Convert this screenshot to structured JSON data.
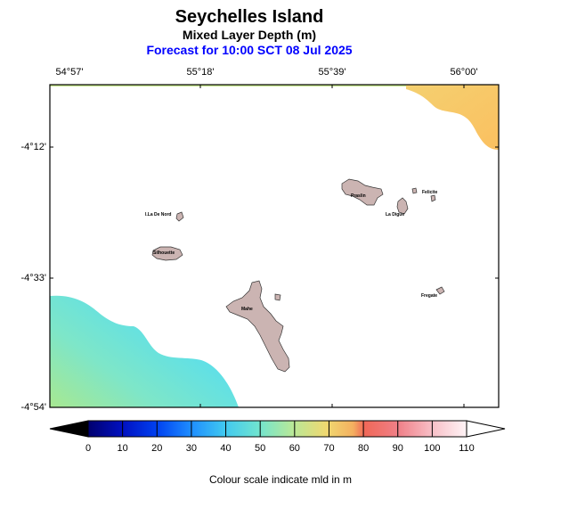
{
  "title": "Seychelles Island",
  "subtitle": "Mixed Layer Depth (m)",
  "forecast": "Forecast for  10:00 SCT 08 Jul 2025",
  "lon_labels": [
    "54°57'",
    "55°18'",
    "55°39'",
    "56°00'"
  ],
  "lat_labels": [
    "-4°12'",
    "-4°33'",
    "-4°54'"
  ],
  "islands": [
    {
      "name": "Praslin"
    },
    {
      "name": "Felicite"
    },
    {
      "name": "La Digue"
    },
    {
      "name": "I.La De Nord"
    },
    {
      "name": "Silhouette"
    },
    {
      "name": "Mahe"
    },
    {
      "name": "Fregate"
    }
  ],
  "colorbar": {
    "ticks": [
      "0",
      "10",
      "20",
      "30",
      "40",
      "50",
      "60",
      "70",
      "80",
      "90",
      "100",
      "110"
    ],
    "min": 0,
    "max": 110,
    "colors": [
      "#000000",
      "#00008b",
      "#0033ff",
      "#1e90ff",
      "#40c4ee",
      "#5ae0e8",
      "#8ae8b0",
      "#d8e890",
      "#f5c060",
      "#f07060",
      "#f4a0a8",
      "#fff0f4",
      "#ffffff"
    ]
  },
  "colorbar_caption": "Colour scale indicate mld in m"
}
